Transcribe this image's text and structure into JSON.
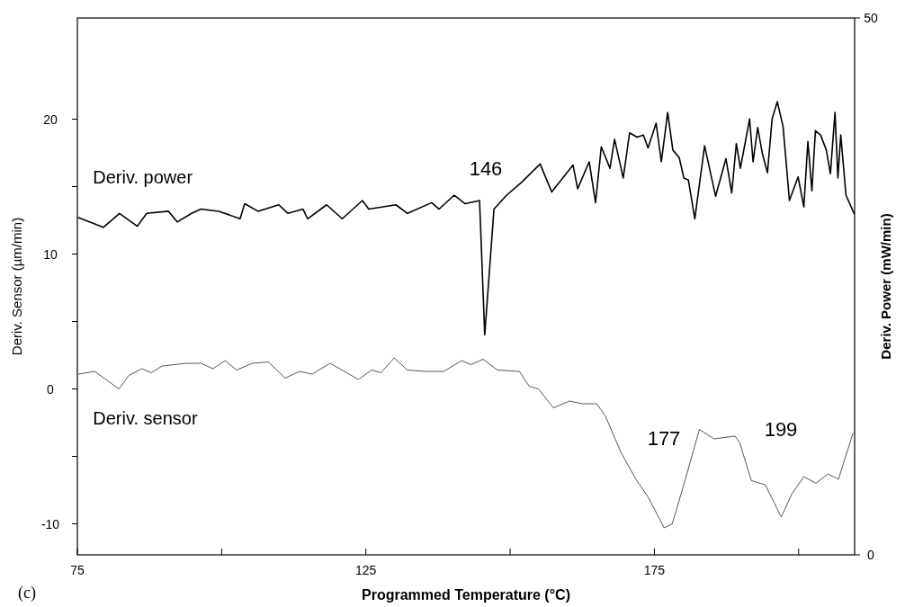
{
  "chart_data": {
    "type": "line",
    "xlabel": "Programmed Temperature (°C)",
    "ylabel": "Deriv. Sensor (µm/min)",
    "y2label": "Deriv. Power (mW/min)",
    "xlim": [
      75,
      209.7
    ],
    "xticks": [
      75,
      {
        "value": 100,
        "label": null
      },
      125,
      {
        "value": 150,
        "label": null
      },
      175,
      {
        "value": 200,
        "label": null
      }
    ],
    "ylim": [
      -12.3,
      27.5
    ],
    "yticks": [
      -10,
      {
        "value": -5,
        "label": null
      },
      0,
      {
        "value": 5,
        "label": null
      },
      10,
      {
        "value": 15,
        "label": null
      },
      20
    ],
    "y2lim": [
      0,
      50
    ],
    "y2ticks": [
      0,
      50
    ],
    "grid": false,
    "marker": "none",
    "line_style": "solid",
    "series": [
      {
        "name": "Deriv. power",
        "color": "#000000",
        "axis": "y2",
        "x": [
          75.2,
          79.5,
          82.3,
          85.4,
          87.0,
          90.8,
          92.3,
          94.8,
          96.4,
          99.5,
          103.2,
          104.0,
          106.3,
          109.9,
          111.5,
          114.1,
          114.9,
          118.2,
          120.9,
          124.4,
          125.5,
          130.2,
          132.2,
          136.4,
          137.7,
          140.3,
          142.2,
          144.7,
          145.6,
          147.2,
          149.4,
          152.0,
          155.2,
          157.2,
          160.9,
          161.7,
          163.7,
          164.8,
          165.8,
          167.3,
          168.1,
          169.6,
          170.7,
          172.0,
          173.1,
          173.9,
          175.3,
          176.2,
          177.3,
          178.2,
          179.3,
          180.1,
          180.9,
          182.0,
          183.7,
          185.6,
          187.4,
          188.4,
          189.2,
          189.9,
          191.5,
          192.1,
          192.9,
          193.7,
          194.6,
          195.4,
          196.3,
          197.3,
          198.4,
          199.9,
          200.9,
          201.6,
          202.3,
          202.9,
          203.8,
          204.8,
          205.5,
          206.3,
          206.8,
          207.3,
          208.2,
          209.6
        ],
        "values": [
          31.4,
          30.5,
          31.8,
          30.6,
          31.8,
          32.0,
          31.0,
          31.8,
          32.2,
          32.0,
          31.3,
          32.7,
          32.0,
          32.6,
          31.8,
          32.2,
          31.3,
          32.6,
          31.3,
          33.0,
          32.2,
          32.6,
          31.8,
          32.8,
          32.2,
          33.5,
          32.7,
          33.0,
          20.5,
          32.2,
          33.5,
          34.7,
          36.4,
          33.8,
          36.3,
          34.1,
          36.6,
          32.8,
          38.0,
          36.0,
          38.7,
          35.1,
          39.3,
          38.9,
          39.1,
          37.9,
          40.2,
          36.6,
          41.2,
          37.7,
          37.0,
          35.1,
          34.9,
          31.3,
          38.1,
          33.4,
          36.9,
          33.7,
          38.3,
          36.0,
          40.6,
          36.6,
          39.8,
          37.4,
          35.6,
          40.6,
          42.2,
          39.9,
          33.0,
          35.2,
          32.4,
          38.5,
          33.9,
          39.5,
          39.1,
          37.7,
          35.5,
          41.2,
          35.1,
          39.1,
          33.5,
          31.8
        ]
      },
      {
        "name": "Deriv. sensor",
        "color": "#555555",
        "x": [
          75.2,
          78.0,
          82.2,
          83.9,
          86.2,
          87.8,
          89.7,
          93.9,
          96.4,
          98.5,
          100.6,
          102.6,
          105.3,
          108.1,
          111.0,
          113.5,
          115.7,
          118.8,
          121.3,
          123.7,
          126.0,
          127.6,
          129.9,
          132.2,
          135.4,
          138.5,
          141.6,
          143.2,
          145.3,
          147.8,
          151.6,
          153.3,
          154.9,
          157.5,
          160.3,
          162.5,
          165.0,
          166.5,
          169.2,
          171.8,
          173.9,
          176.7,
          178.1,
          180.1,
          182.8,
          185.3,
          189.0,
          189.8,
          191.8,
          194.2,
          197.0,
          198.8,
          200.9,
          203.0,
          205.1,
          206.9,
          209.4
        ],
        "values": [
          1.1,
          1.3,
          0.0,
          1.0,
          1.5,
          1.2,
          1.7,
          1.9,
          1.9,
          1.5,
          2.1,
          1.4,
          1.9,
          2.0,
          0.8,
          1.3,
          1.1,
          1.9,
          1.3,
          0.7,
          1.4,
          1.2,
          2.3,
          1.4,
          1.3,
          1.3,
          2.1,
          1.8,
          2.2,
          1.4,
          1.3,
          0.2,
          0.0,
          -1.4,
          -0.9,
          -1.1,
          -1.1,
          -2.0,
          -4.7,
          -6.7,
          -8.0,
          -10.3,
          -10.0,
          -7.1,
          -3.0,
          -3.7,
          -3.5,
          -4.0,
          -6.8,
          -7.1,
          -9.5,
          -7.8,
          -6.5,
          -7.0,
          -6.3,
          -6.7,
          -3.3
        ]
      }
    ],
    "annotations": [
      "146",
      "177",
      "199",
      "(c)"
    ]
  }
}
